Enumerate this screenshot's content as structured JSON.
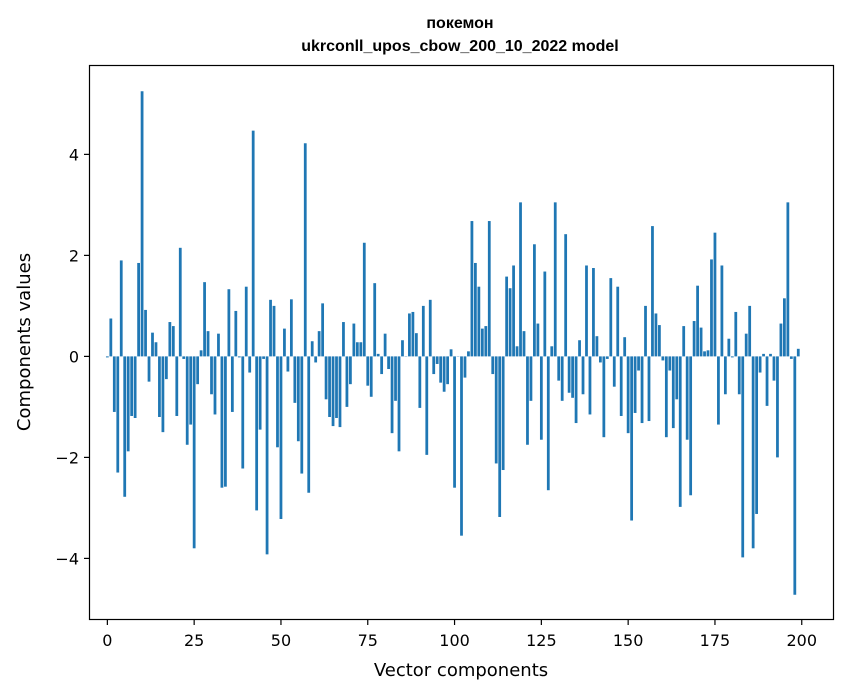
{
  "chart_data": {
    "type": "bar",
    "title": "покемон",
    "subtitle": "ukrconll_upos_cbow_200_10_2022 model",
    "xlabel": "Vector components",
    "ylabel": "Components values",
    "xlim": [
      -5,
      209
    ],
    "ylim": [
      -5.2,
      5.75
    ],
    "xticks": [
      0,
      25,
      50,
      75,
      100,
      125,
      150,
      175,
      200
    ],
    "yticks": [
      -4,
      -2,
      0,
      2,
      4
    ],
    "ytick_labels": [
      "−4",
      "−2",
      "0",
      "2",
      "4"
    ],
    "grid": false,
    "bar_color": "#1f77b4",
    "values": [
      -0.02,
      0.75,
      -1.1,
      -2.3,
      1.9,
      -2.78,
      -1.88,
      -1.18,
      -1.22,
      1.85,
      5.25,
      0.92,
      -0.5,
      0.47,
      0.28,
      -1.2,
      -1.5,
      -0.45,
      0.68,
      0.6,
      -1.18,
      2.15,
      -0.05,
      -1.75,
      -1.35,
      -3.8,
      -0.55,
      0.12,
      1.47,
      0.5,
      -0.75,
      -1.15,
      0.45,
      -2.6,
      -2.58,
      1.33,
      -1.1,
      0.9,
      -0.02,
      -2.22,
      1.38,
      -0.32,
      4.47,
      -3.05,
      -1.45,
      -0.05,
      -3.92,
      1.12,
      1.0,
      -1.8,
      -3.22,
      0.55,
      -0.3,
      1.13,
      -0.92,
      -1.68,
      -2.32,
      4.22,
      -2.7,
      0.3,
      -0.12,
      0.5,
      1.05,
      -0.85,
      -1.2,
      -1.38,
      -1.22,
      -1.4,
      0.68,
      -1.0,
      -0.55,
      0.65,
      0.28,
      0.28,
      2.25,
      -0.58,
      -0.8,
      1.45,
      0.05,
      -0.35,
      0.45,
      -0.25,
      -1.52,
      -0.88,
      -1.88,
      0.32,
      0.0,
      0.85,
      0.88,
      0.46,
      -1.02,
      1.0,
      -1.95,
      1.12,
      -0.35,
      -0.15,
      -0.52,
      -0.7,
      -0.55,
      0.14,
      -2.6,
      0.0,
      -3.55,
      -0.42,
      0.1,
      2.68,
      1.85,
      1.38,
      0.55,
      0.6,
      2.68,
      -0.35,
      -2.12,
      -3.18,
      -2.25,
      1.58,
      1.35,
      1.8,
      0.2,
      3.05,
      0.5,
      -1.75,
      -0.88,
      2.22,
      0.65,
      -1.65,
      1.68,
      -2.65,
      0.2,
      3.05,
      -0.48,
      -0.88,
      2.42,
      -0.72,
      -0.82,
      -1.32,
      0.32,
      -0.75,
      1.8,
      -1.15,
      1.75,
      0.4,
      -0.12,
      -1.6,
      -0.05,
      1.55,
      -0.6,
      1.38,
      -1.18,
      0.38,
      -1.52,
      -3.25,
      -1.12,
      -0.28,
      -1.32,
      1.0,
      -1.28,
      2.58,
      0.85,
      0.62,
      -0.08,
      -1.6,
      -0.28,
      -1.42,
      -0.85,
      -2.98,
      0.6,
      -1.65,
      -2.75,
      0.7,
      1.4,
      0.57,
      0.1,
      0.12,
      1.92,
      2.45,
      -1.35,
      1.8,
      -0.75,
      0.35,
      -0.02,
      0.88,
      -0.75,
      -3.98,
      0.45,
      1.0,
      -3.8,
      -3.12,
      -0.32,
      0.05,
      -0.98,
      0.05,
      -0.48,
      -2.0,
      0.65,
      1.15,
      3.05,
      -0.05,
      -4.72,
      0.15
    ]
  }
}
